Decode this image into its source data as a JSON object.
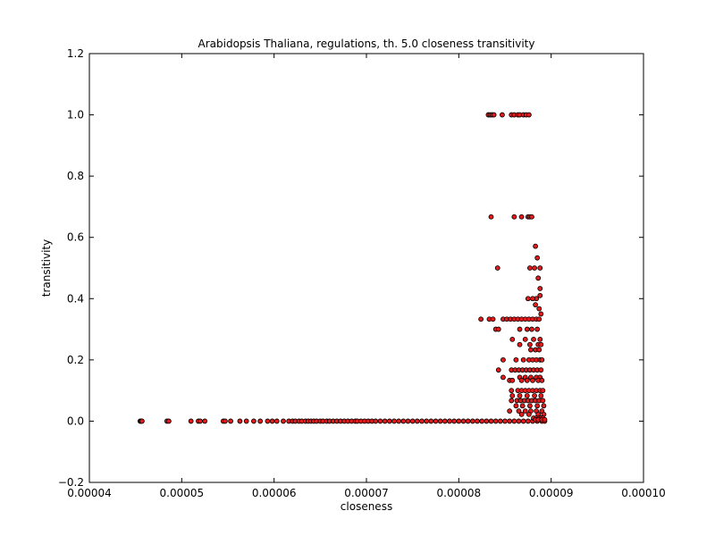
{
  "chart_data": {
    "type": "scatter",
    "title": "Arabidopsis Thaliana, regulations, th. 5.0 closeness transitivity",
    "xlabel": "closeness",
    "ylabel": "transitivity",
    "xlim": [
      4e-05,
      0.0001
    ],
    "ylim": [
      -0.2,
      1.2
    ],
    "xticks": [
      4e-05,
      5e-05,
      6e-05,
      7e-05,
      8e-05,
      9e-05,
      0.0001
    ],
    "xtick_labels": [
      "0.00004",
      "0.00005",
      "0.00006",
      "0.00007",
      "0.00008",
      "0.00009",
      "0.00010"
    ],
    "yticks": [
      -0.2,
      0.0,
      0.2,
      0.4,
      0.6,
      0.8,
      1.0,
      1.2
    ],
    "ytick_labels": [
      "−0.2",
      "0.0",
      "0.2",
      "0.4",
      "0.6",
      "0.8",
      "1.0",
      "1.2"
    ],
    "grid": false,
    "marker_color": "#e41a1c",
    "marker_edge_color": "#000000",
    "series": [
      {
        "x": [
          4.55e-05,
          4.56e-05,
          4.57e-05,
          4.84e-05,
          4.86e-05,
          5.1e-05,
          5.18e-05,
          5.2e-05,
          5.25e-05,
          5.45e-05,
          5.47e-05,
          5.53e-05,
          5.63e-05,
          5.7e-05,
          5.78e-05,
          5.85e-05,
          5.93e-05,
          5.98e-05,
          6.03e-05,
          6.1e-05,
          6.16e-05,
          6.2e-05,
          6.23e-05,
          6.27e-05,
          6.3e-05,
          6.34e-05,
          6.37e-05,
          6.4e-05,
          6.43e-05,
          6.46e-05,
          6.5e-05,
          6.53e-05,
          6.57e-05,
          6.6e-05,
          6.64e-05,
          6.68e-05,
          6.72e-05,
          6.76e-05,
          6.8e-05,
          6.84e-05,
          6.88e-05,
          6.9e-05,
          6.94e-05,
          6.98e-05,
          7.02e-05,
          7.06e-05,
          7.1e-05,
          7.15e-05,
          7.2e-05,
          7.25e-05,
          7.3e-05,
          7.35e-05,
          7.4e-05,
          7.45e-05,
          7.5e-05,
          7.55e-05,
          7.6e-05,
          7.65e-05,
          7.7e-05,
          7.75e-05,
          7.8e-05,
          7.85e-05,
          7.9e-05,
          7.95e-05,
          8e-05,
          8.05e-05,
          8.1e-05,
          8.15e-05,
          8.2e-05,
          8.25e-05,
          8.3e-05,
          8.35e-05,
          8.4e-05,
          8.45e-05,
          8.5e-05,
          8.55e-05,
          8.6e-05,
          8.65e-05,
          8.7e-05,
          8.75e-05,
          8.8e-05,
          8.85e-05,
          8.9e-05,
          8.93e-05,
          8.32e-05,
          8.34e-05,
          8.36e-05,
          8.38e-05,
          8.47e-05,
          8.57e-05,
          8.6e-05,
          8.64e-05,
          8.66e-05,
          8.7e-05,
          8.73e-05,
          8.76e-05,
          8.35e-05,
          8.6e-05,
          8.68e-05,
          8.75e-05,
          8.77e-05,
          8.79e-05,
          8.83e-05,
          8.85e-05,
          8.88e-05,
          8.42e-05,
          8.77e-05,
          8.82e-05,
          8.86e-05,
          8.84e-05,
          8.88e-05,
          8.75e-05,
          8.8e-05,
          8.88e-05,
          8.24e-05,
          8.33e-05,
          8.37e-05,
          8.48e-05,
          8.52e-05,
          8.56e-05,
          8.6e-05,
          8.64e-05,
          8.68e-05,
          8.72e-05,
          8.76e-05,
          8.8e-05,
          8.84e-05,
          8.87e-05,
          8.83e-05,
          8.87e-05,
          8.89e-05,
          8.4e-05,
          8.43e-05,
          8.66e-05,
          8.74e-05,
          8.79e-05,
          8.85e-05,
          8.58e-05,
          8.72e-05,
          8.81e-05,
          8.88e-05,
          8.66e-05,
          8.77e-05,
          8.86e-05,
          8.89e-05,
          8.78e-05,
          8.83e-05,
          8.87e-05,
          8.48e-05,
          8.62e-05,
          8.7e-05,
          8.76e-05,
          8.8e-05,
          8.84e-05,
          8.88e-05,
          8.9e-05,
          8.43e-05,
          8.57e-05,
          8.61e-05,
          8.65e-05,
          8.69e-05,
          8.73e-05,
          8.77e-05,
          8.81e-05,
          8.85e-05,
          8.89e-05,
          8.48e-05,
          8.66e-05,
          8.72e-05,
          8.78e-05,
          8.84e-05,
          8.88e-05,
          8.55e-05,
          8.58e-05,
          8.68e-05,
          8.74e-05,
          8.8e-05,
          8.86e-05,
          8.9e-05,
          8.57e-05,
          8.64e-05,
          8.68e-05,
          8.72e-05,
          8.76e-05,
          8.8e-05,
          8.84e-05,
          8.88e-05,
          8.91e-05,
          8.58e-05,
          8.66e-05,
          8.74e-05,
          8.82e-05,
          8.89e-05,
          8.57e-05,
          8.63e-05,
          8.67e-05,
          8.71e-05,
          8.75e-05,
          8.79e-05,
          8.83e-05,
          8.87e-05,
          8.91e-05,
          8.62e-05,
          8.69e-05,
          8.77e-05,
          8.85e-05,
          8.92e-05,
          8.55e-05,
          8.65e-05,
          8.72e-05,
          8.78e-05,
          8.84e-05,
          8.9e-05,
          8.68e-05,
          8.76e-05,
          8.86e-05,
          8.92e-05,
          8.81e-05,
          8.84e-05,
          8.87e-05,
          8.89e-05,
          8.91e-05,
          8.83e-05,
          8.86e-05,
          8.9e-05,
          8.93e-05
        ],
        "y": [
          0.0,
          0.0,
          0.0,
          0.0,
          0.0,
          0.0,
          0.0,
          0.0,
          0.0,
          0.0,
          0.0,
          0.0,
          0.0,
          0.0,
          0.0,
          0.0,
          0.0,
          0.0,
          0.0,
          0.0,
          0.0,
          0.0,
          0.0,
          0.0,
          0.0,
          0.0,
          0.0,
          0.0,
          0.0,
          0.0,
          0.0,
          0.0,
          0.0,
          0.0,
          0.0,
          0.0,
          0.0,
          0.0,
          0.0,
          0.0,
          0.0,
          0.0,
          0.0,
          0.0,
          0.0,
          0.0,
          0.0,
          0.0,
          0.0,
          0.0,
          0.0,
          0.0,
          0.0,
          0.0,
          0.0,
          0.0,
          0.0,
          0.0,
          0.0,
          0.0,
          0.0,
          0.0,
          0.0,
          0.0,
          0.0,
          0.0,
          0.0,
          0.0,
          0.0,
          0.0,
          0.0,
          0.0,
          0.0,
          0.0,
          0.0,
          0.0,
          0.0,
          0.0,
          0.0,
          0.0,
          0.0,
          0.0,
          0.0,
          0.0,
          1.0,
          1.0,
          1.0,
          1.0,
          1.0,
          1.0,
          1.0,
          1.0,
          1.0,
          1.0,
          1.0,
          1.0,
          0.667,
          0.667,
          0.667,
          0.667,
          0.667,
          0.667,
          0.571,
          0.533,
          0.5,
          0.5,
          0.5,
          0.5,
          0.467,
          0.4,
          0.433,
          0.4,
          0.4,
          0.41,
          0.333,
          0.333,
          0.333,
          0.333,
          0.333,
          0.333,
          0.333,
          0.333,
          0.333,
          0.333,
          0.333,
          0.333,
          0.333,
          0.333,
          0.38,
          0.367,
          0.35,
          0.3,
          0.3,
          0.3,
          0.3,
          0.3,
          0.3,
          0.267,
          0.267,
          0.267,
          0.267,
          0.25,
          0.25,
          0.25,
          0.25,
          0.233,
          0.233,
          0.233,
          0.2,
          0.2,
          0.2,
          0.2,
          0.2,
          0.2,
          0.2,
          0.2,
          0.167,
          0.167,
          0.167,
          0.167,
          0.167,
          0.167,
          0.167,
          0.167,
          0.167,
          0.167,
          0.143,
          0.143,
          0.143,
          0.143,
          0.143,
          0.143,
          0.133,
          0.133,
          0.133,
          0.133,
          0.133,
          0.133,
          0.133,
          0.1,
          0.1,
          0.1,
          0.1,
          0.1,
          0.1,
          0.1,
          0.1,
          0.1,
          0.083,
          0.083,
          0.083,
          0.083,
          0.083,
          0.067,
          0.067,
          0.067,
          0.067,
          0.067,
          0.067,
          0.067,
          0.067,
          0.067,
          0.05,
          0.05,
          0.05,
          0.05,
          0.05,
          0.033,
          0.033,
          0.033,
          0.033,
          0.033,
          0.033,
          0.022,
          0.022,
          0.022,
          0.022,
          0.01,
          0.01,
          0.01,
          0.01,
          0.01,
          0.005,
          0.005,
          0.005,
          0.005
        ]
      }
    ]
  }
}
